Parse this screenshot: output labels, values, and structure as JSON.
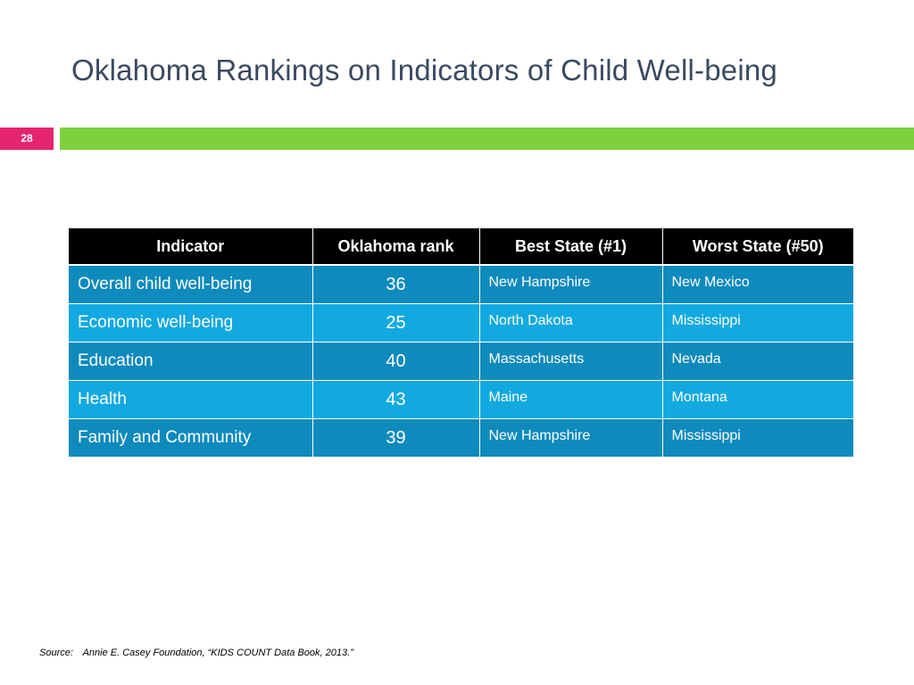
{
  "slide": {
    "title": "Oklahoma Rankings on Indicators of Child Well-being",
    "page_number": "28"
  },
  "colors": {
    "title_text": "#3a4a60",
    "page_number_bg": "#e5256f",
    "accent_bar": "#7dd13b",
    "header_bg": "#000000",
    "row_dark": "#0e8abd",
    "row_light": "#12a9e0"
  },
  "table": {
    "headers": [
      "Indicator",
      "Oklahoma rank",
      "Best State (#1)",
      "Worst State (#50)"
    ],
    "rows": [
      {
        "indicator": "Overall child well-being",
        "rank": "36",
        "best": "New Hampshire",
        "worst": "New Mexico"
      },
      {
        "indicator": "Economic well-being",
        "rank": "25",
        "best": "North Dakota",
        "worst": "Mississippi"
      },
      {
        "indicator": "Education",
        "rank": "40",
        "best": "Massachusetts",
        "worst": "Nevada"
      },
      {
        "indicator": "Health",
        "rank": "43",
        "best": "Maine",
        "worst": "Montana"
      },
      {
        "indicator": "Family and Community",
        "rank": "39",
        "best": "New Hampshire",
        "worst": "Mississippi"
      }
    ]
  },
  "source": {
    "label": "Source:",
    "text": "Annie E. Casey Foundation, “KIDS COUNT Data Book, 2013.”"
  }
}
